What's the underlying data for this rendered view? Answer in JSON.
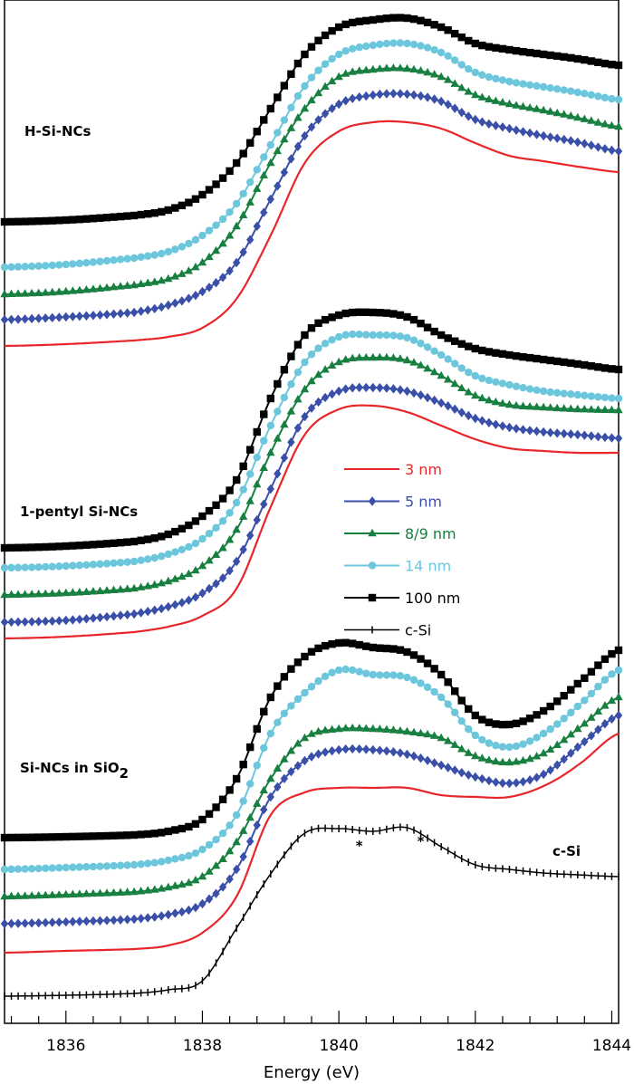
{
  "chart_data": {
    "type": "line",
    "title": "",
    "xlabel": "Energy (eV)",
    "ylabel": "",
    "xlim": [
      1835.1,
      1844.1
    ],
    "ylim": [
      0,
      113
    ],
    "x_ticks": [
      1836,
      1838,
      1840,
      1842,
      1844
    ],
    "x_tick_labels": [
      "1836",
      "1838",
      "1840",
      "1842",
      "1844"
    ],
    "minor_tick_step": 0.4,
    "grid": false,
    "legend_placement": "center-right",
    "x": [
      1835.1,
      1836,
      1837,
      1837.5,
      1838,
      1838.5,
      1839,
      1839.5,
      1840,
      1840.5,
      1841,
      1841.5,
      1842,
      1842.5,
      1843,
      1843.5,
      1844.1
    ],
    "legend": [
      {
        "label": "3 nm",
        "color": "#e8262a",
        "marker": "none"
      },
      {
        "label": "5 nm",
        "color": "#3a4fa8",
        "marker": "diamond"
      },
      {
        "label": "8/9 nm",
        "color": "#178040",
        "marker": "triangle"
      },
      {
        "label": "14 nm",
        "color": "#6cc6dc",
        "marker": "circle"
      },
      {
        "label": "100 nm",
        "color": "#000000",
        "marker": "square"
      },
      {
        "label": "c-Si",
        "color": "#000000",
        "marker": "plus"
      }
    ],
    "groups": [
      {
        "label": "H-Si-NCs",
        "series": [
          {
            "size": "100 nm",
            "values": [
              88.5,
              88.7,
              89.2,
              89.8,
              91.5,
              95,
              101,
              107,
              110,
              110.8,
              111,
              110,
              108.2,
              107.5,
              107,
              106.5,
              105.8
            ]
          },
          {
            "size": "14 nm",
            "values": [
              83.5,
              83.8,
              84.5,
              85.2,
              87,
              90.5,
              97,
              103.5,
              107,
              108,
              108.2,
              107.2,
              105,
              104,
              103.4,
              102.8,
              102
            ]
          },
          {
            "size": "8/9 nm",
            "values": [
              80.5,
              80.8,
              81.5,
              82.2,
              84,
              88,
              95,
              101,
              104.5,
              105.3,
              105.4,
              104.5,
              102.5,
              101.5,
              100.8,
              100,
              99
            ]
          },
          {
            "size": "5 nm",
            "values": [
              77.7,
              78,
              78.5,
              79.3,
              80.8,
              84,
              91,
              98,
              101.5,
              102.5,
              102.6,
              101.8,
              99.8,
              98.8,
              98,
              97.3,
              96.3
            ]
          },
          {
            "size": "3 nm",
            "values": [
              74.8,
              75,
              75.4,
              75.8,
              76.8,
              80,
              87,
              95,
              98.5,
              99.5,
              99.5,
              98.8,
              97.2,
              95.8,
              95.2,
              94.6,
              94
            ]
          }
        ]
      },
      {
        "label": "1-pentyl Si-NCs",
        "series": [
          {
            "size": "100 nm",
            "values": [
              52.5,
              52.7,
              53.2,
              54,
              56,
              60,
              69,
              76,
              78.2,
              78.5,
              78,
              76,
              74.5,
              73.8,
              73.3,
              72.8,
              72.2
            ]
          },
          {
            "size": "14 nm",
            "values": [
              50.3,
              50.5,
              51,
              51.8,
              53.5,
              57.5,
              66,
              73,
              75.8,
              76,
              75.7,
              73.8,
              71.5,
              70.5,
              69.8,
              69.4,
              69
            ]
          },
          {
            "size": "8/9 nm",
            "values": [
              47.3,
              47.5,
              48,
              48.8,
              50.5,
              54.5,
              63,
              70,
              73,
              73.5,
              73.2,
              71.5,
              69.3,
              68.3,
              68,
              67.8,
              67.7
            ]
          },
          {
            "size": "5 nm",
            "values": [
              44.3,
              44.5,
              45.2,
              46,
              47.5,
              51,
              59,
              67,
              69.8,
              70.2,
              69.8,
              68.5,
              66.8,
              65.8,
              65.3,
              65,
              64.6
            ]
          },
          {
            "size": "3 nm",
            "values": [
              42.5,
              42.7,
              43.2,
              43.8,
              45,
              48,
              57,
              65,
              67.8,
              68.2,
              67.5,
              66,
              64.5,
              63.5,
              63.2,
              63,
              63
            ]
          }
        ]
      },
      {
        "label": "Si-NCs in SiO",
        "label_subscript": "2",
        "series": [
          {
            "size": "100 nm",
            "values": [
              20.5,
              20.6,
              20.8,
              21.2,
              22.5,
              27,
              36,
              40.5,
              42,
              41.5,
              41,
              38.5,
              34,
              33,
              34.5,
              37.5,
              41.2
            ]
          },
          {
            "size": "14 nm",
            "values": [
              17,
              17.2,
              17.5,
              18,
              19.2,
              23,
              32,
              36.5,
              39,
              38.5,
              38.2,
              36,
              31.8,
              30.5,
              32,
              35,
              39
            ]
          },
          {
            "size": "8/9 nm",
            "values": [
              14,
              14.2,
              14.5,
              15,
              16.2,
              20,
              27,
              31.5,
              32.5,
              32.5,
              32.2,
              31.5,
              29.5,
              28.8,
              29.8,
              32.5,
              36
            ]
          },
          {
            "size": "5 nm",
            "values": [
              11,
              11.2,
              11.5,
              12,
              13.2,
              17,
              25,
              29,
              30.2,
              30.2,
              29.7,
              28.5,
              27.2,
              26.5,
              27.5,
              30.5,
              34
            ]
          },
          {
            "size": "3 nm",
            "values": [
              7.8,
              8,
              8.2,
              8.6,
              10,
              14,
              23,
              25.5,
              26,
              26,
              26,
              25.2,
              25,
              25,
              26.2,
              28.5,
              32
            ]
          }
        ]
      },
      {
        "label": "c-Si",
        "series": [
          {
            "size": "c-Si",
            "values": [
              3,
              3.1,
              3.3,
              3.7,
              4.7,
              10.5,
              16.5,
              21,
              21.5,
              21.2,
              21.6,
              19.5,
              17.5,
              17,
              16.6,
              16.4,
              16.2
            ]
          }
        ]
      }
    ],
    "annotations": [
      {
        "text": "*",
        "x": 1840.3,
        "y": 19.5
      },
      {
        "text": "*",
        "x": 1841.2,
        "y": 20
      }
    ]
  }
}
